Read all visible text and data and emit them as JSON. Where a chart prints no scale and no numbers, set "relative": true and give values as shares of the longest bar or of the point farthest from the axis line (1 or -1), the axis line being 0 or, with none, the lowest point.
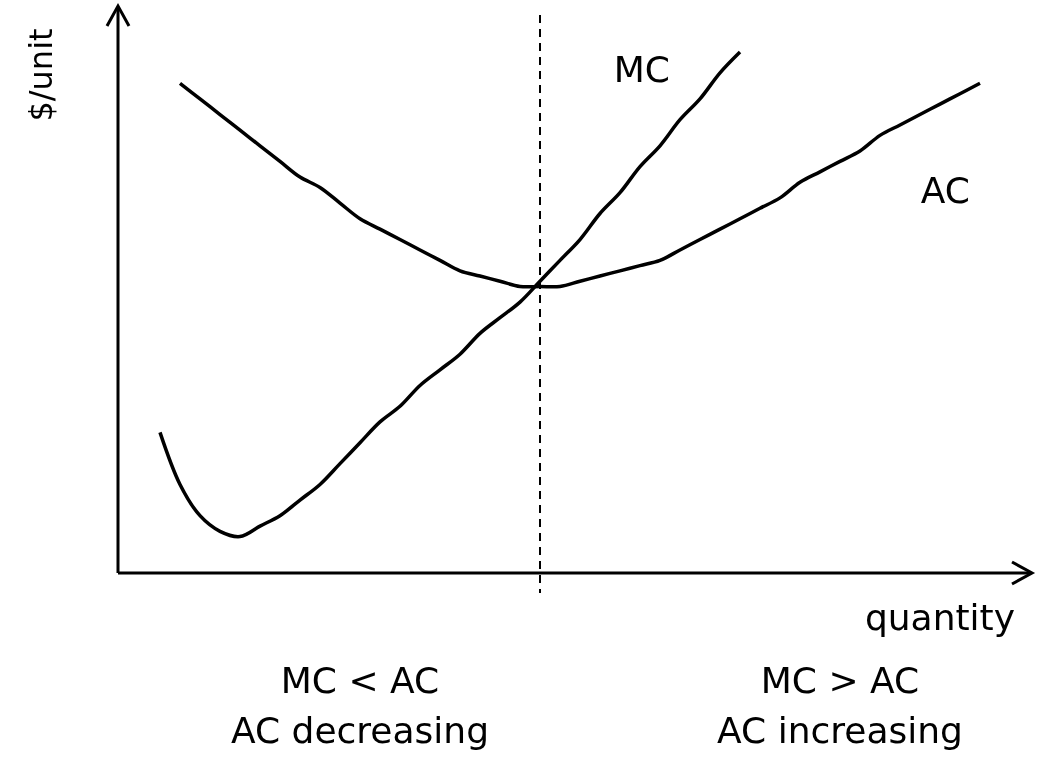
{
  "chart_data": {
    "type": "line",
    "relative": true,
    "xlabel": "quantity",
    "ylabel": "$/unit",
    "line_style": "solid",
    "marker": "none",
    "categories": [
      null,
      null,
      null,
      null,
      null,
      null,
      null,
      null,
      null,
      null,
      null,
      null,
      null,
      null,
      null,
      null,
      null,
      null,
      null,
      null,
      null,
      null,
      null,
      null,
      null,
      null,
      null,
      null,
      null,
      null,
      null,
      null,
      null,
      null,
      null,
      null,
      null,
      null,
      null,
      null,
      null,
      null
    ],
    "series": [
      {
        "name": "MC",
        "color": "#000000",
        "values": [
          0.27,
          0.17,
          0.11,
          0.08,
          0.07,
          0.09,
          0.11,
          0.14,
          0.17,
          0.21,
          0.25,
          0.29,
          0.32,
          0.36,
          0.39,
          0.42,
          0.46,
          0.49,
          0.52,
          0.56,
          0.6,
          0.64,
          0.69,
          0.73,
          0.78,
          0.82,
          0.87,
          0.91,
          0.96,
          1,
          null,
          null,
          null,
          null,
          null,
          null,
          null,
          null,
          null,
          null,
          null,
          null
        ]
      },
      {
        "name": "AC",
        "color": "#000000",
        "values": [
          null,
          0.94,
          0.91,
          0.88,
          0.85,
          0.82,
          0.79,
          0.76,
          0.74,
          0.71,
          0.68,
          0.66,
          0.64,
          0.62,
          0.6,
          0.58,
          0.57,
          0.56,
          0.55,
          0.55,
          0.55,
          0.56,
          0.57,
          0.58,
          0.59,
          0.6,
          0.62,
          0.64,
          0.66,
          0.68,
          0.7,
          0.72,
          0.75,
          0.77,
          0.79,
          0.81,
          0.84,
          0.86,
          0.88,
          0.9,
          0.92,
          0.94
        ]
      }
    ],
    "annotations": [
      "MC < AC\nAC decreasing",
      "MC > AC\nAC increasing"
    ]
  }
}
